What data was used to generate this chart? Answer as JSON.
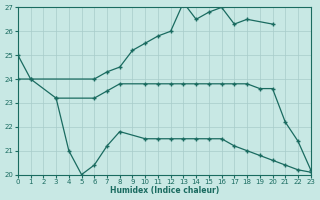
{
  "bg_color": "#c8e8e4",
  "grid_color": "#a8ccca",
  "line_color": "#1a6b60",
  "xlabel": "Humidex (Indice chaleur)",
  "xlim": [
    0,
    23
  ],
  "ylim": [
    20,
    27
  ],
  "yticks": [
    20,
    21,
    22,
    23,
    24,
    25,
    26,
    27
  ],
  "xticks": [
    0,
    1,
    2,
    3,
    4,
    5,
    6,
    7,
    8,
    9,
    10,
    11,
    12,
    13,
    14,
    15,
    16,
    17,
    18,
    19,
    20,
    21,
    22,
    23
  ],
  "line1_x": [
    0,
    1,
    6,
    7,
    8,
    9,
    10,
    11,
    12,
    13,
    14,
    15,
    16,
    17,
    18,
    20
  ],
  "line1_y": [
    25,
    24,
    24,
    24.3,
    24.5,
    25.2,
    25.5,
    25.8,
    26.0,
    27.2,
    26.5,
    26.8,
    27.0,
    26.3,
    26.5,
    26.3
  ],
  "line2_x": [
    0,
    1,
    3,
    6,
    7,
    8,
    10,
    11,
    12,
    13,
    14,
    15,
    16,
    17,
    18,
    19,
    20,
    21,
    22,
    23
  ],
  "line2_y": [
    24,
    24,
    23.2,
    23.2,
    23.5,
    23.8,
    23.8,
    23.8,
    23.8,
    23.8,
    23.8,
    23.8,
    23.8,
    23.8,
    23.8,
    23.6,
    23.6,
    22.2,
    21.4,
    20.2
  ],
  "line3_x": [
    3,
    4,
    5,
    6,
    7,
    8,
    10,
    11,
    12,
    13,
    14,
    15,
    16,
    17,
    18,
    19,
    20,
    21,
    22,
    23
  ],
  "line3_y": [
    23.2,
    21.0,
    20.0,
    20.4,
    21.2,
    21.8,
    21.5,
    21.5,
    21.5,
    21.5,
    21.5,
    21.5,
    21.5,
    21.2,
    21.0,
    20.8,
    20.6,
    20.4,
    20.2,
    20.1
  ]
}
